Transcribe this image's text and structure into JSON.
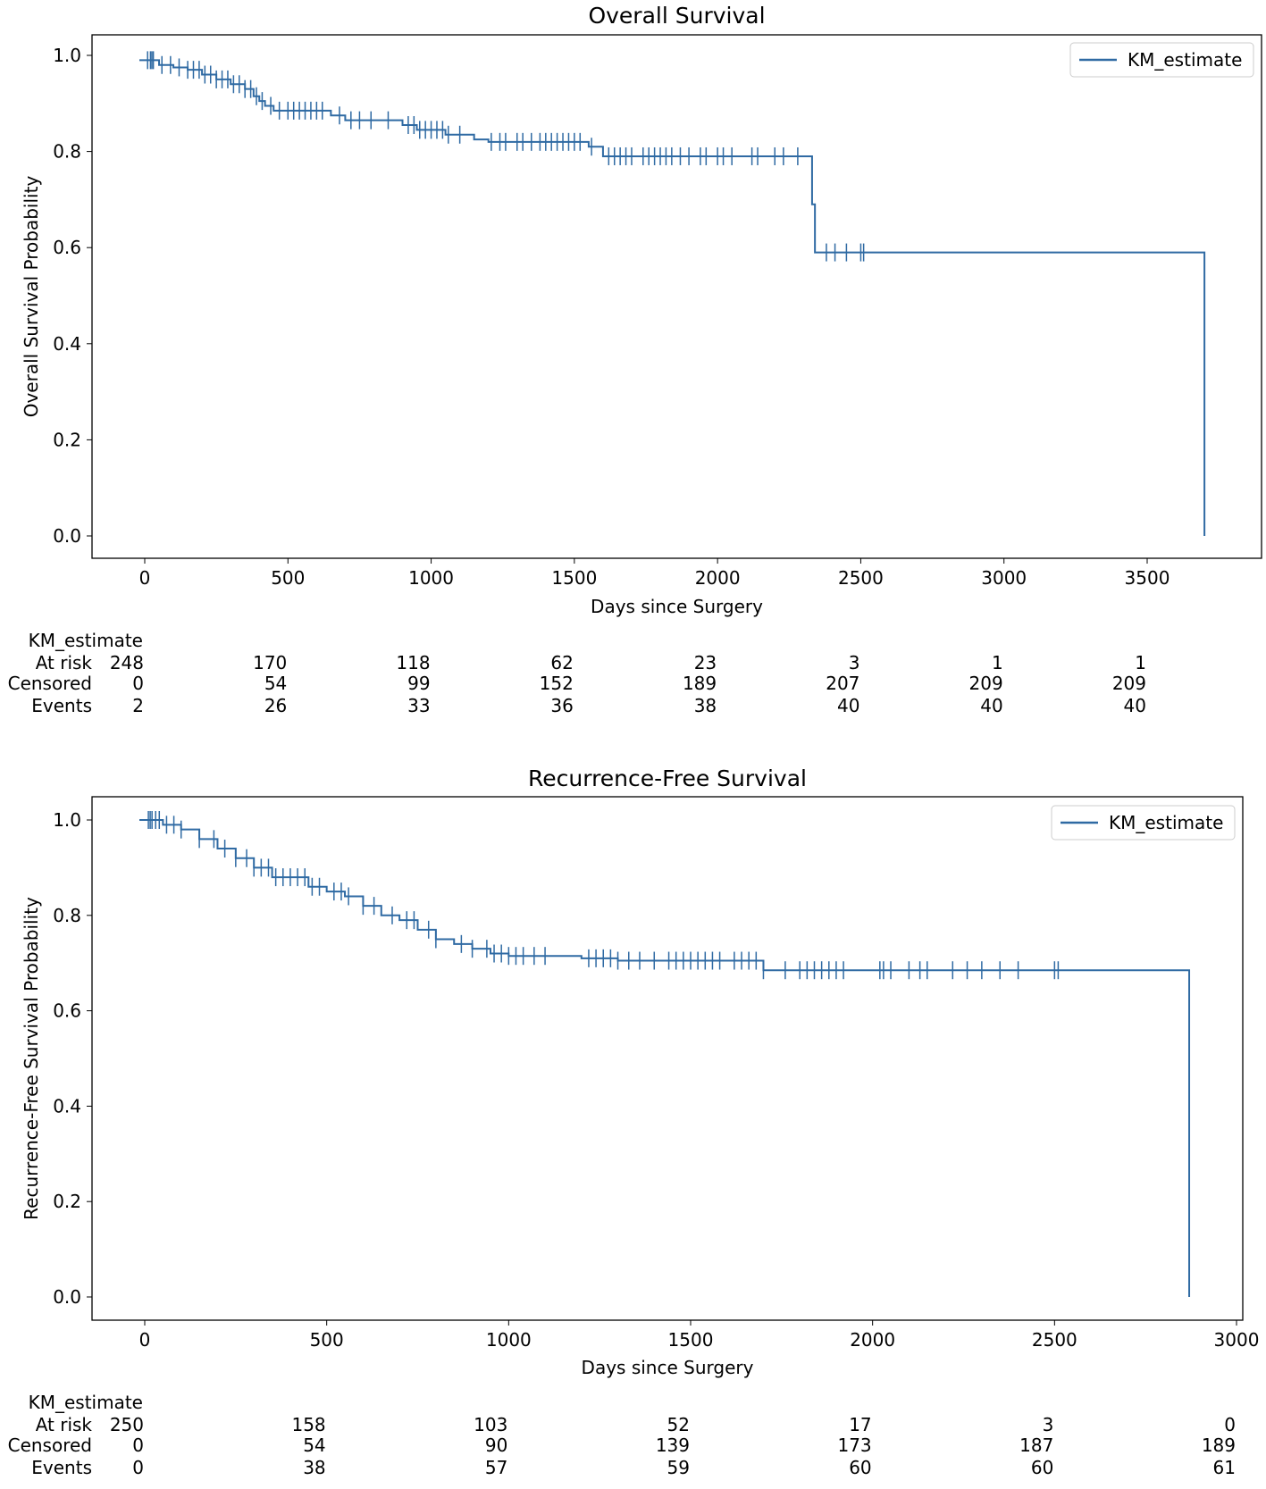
{
  "color": "#2f6aa3",
  "chart_data": [
    {
      "type": "line",
      "title": "Overall Survival",
      "xlabel": "Days since Surgery",
      "ylabel": "Overall Survival Probability",
      "xlim": [
        -180,
        3900
      ],
      "ylim": [
        -0.05,
        1.04
      ],
      "xticks": [
        0,
        500,
        1000,
        1500,
        2000,
        2500,
        3000,
        3500
      ],
      "yticks": [
        0.0,
        0.2,
        0.4,
        0.6,
        0.8,
        1.0
      ],
      "ytick_labels": [
        "0.0",
        "0.2",
        "0.4",
        "0.6",
        "0.8",
        "1.0"
      ],
      "legend": {
        "label": "KM_estimate",
        "position": "top-right"
      },
      "grid": false,
      "steps": [
        [
          0,
          0.99
        ],
        [
          50,
          0.98
        ],
        [
          100,
          0.975
        ],
        [
          150,
          0.97
        ],
        [
          200,
          0.96
        ],
        [
          250,
          0.95
        ],
        [
          300,
          0.94
        ],
        [
          350,
          0.93
        ],
        [
          380,
          0.915
        ],
        [
          400,
          0.905
        ],
        [
          420,
          0.895
        ],
        [
          450,
          0.885
        ],
        [
          650,
          0.875
        ],
        [
          700,
          0.865
        ],
        [
          900,
          0.855
        ],
        [
          950,
          0.845
        ],
        [
          1050,
          0.835
        ],
        [
          1150,
          0.825
        ],
        [
          1200,
          0.82
        ],
        [
          1550,
          0.81
        ],
        [
          1600,
          0.79
        ],
        [
          2330,
          0.69
        ],
        [
          2340,
          0.59
        ],
        [
          3700,
          0.0
        ]
      ],
      "censored": [
        10,
        20,
        25,
        30,
        60,
        90,
        120,
        150,
        170,
        190,
        210,
        230,
        250,
        270,
        290,
        310,
        330,
        350,
        370,
        390,
        410,
        440,
        470,
        500,
        520,
        540,
        560,
        580,
        600,
        620,
        680,
        720,
        750,
        790,
        850,
        920,
        940,
        960,
        980,
        1000,
        1020,
        1040,
        1060,
        1100,
        1210,
        1240,
        1260,
        1300,
        1320,
        1350,
        1380,
        1400,
        1420,
        1440,
        1460,
        1480,
        1500,
        1520,
        1560,
        1620,
        1640,
        1660,
        1680,
        1700,
        1740,
        1760,
        1780,
        1800,
        1820,
        1840,
        1870,
        1900,
        1940,
        1960,
        2000,
        2020,
        2050,
        2120,
        2140,
        2200,
        2230,
        2280,
        2380,
        2410,
        2450,
        2500,
        2510
      ],
      "at_risk_table": {
        "title": "KM_estimate",
        "row_labels": [
          "At risk",
          "Censored",
          "Events"
        ],
        "times": [
          0,
          500,
          1000,
          1500,
          2000,
          2500,
          3000,
          3500
        ],
        "at_risk": [
          "248",
          "170",
          "118",
          "62",
          "23",
          "3",
          "1",
          "1"
        ],
        "censored": [
          "0",
          "54",
          "99",
          "152",
          "189",
          "207",
          "209",
          "209"
        ],
        "events": [
          "2",
          "26",
          "33",
          "36",
          "38",
          "40",
          "40",
          "40"
        ]
      }
    },
    {
      "type": "line",
      "title": "Recurrence-Free Survival",
      "xlabel": "Days since Surgery",
      "ylabel": "Recurrence-Free Survival Probability",
      "xlim": [
        -143,
        3020
      ],
      "ylim": [
        -0.05,
        1.05
      ],
      "xticks": [
        0,
        500,
        1000,
        1500,
        2000,
        2500,
        3000
      ],
      "yticks": [
        0.0,
        0.2,
        0.4,
        0.6,
        0.8,
        1.0
      ],
      "ytick_labels": [
        "0.0",
        "0.2",
        "0.4",
        "0.6",
        "0.8",
        "1.0"
      ],
      "legend": {
        "label": "KM_estimate",
        "position": "top-right"
      },
      "grid": false,
      "steps": [
        [
          0,
          1.0
        ],
        [
          50,
          0.99
        ],
        [
          100,
          0.98
        ],
        [
          150,
          0.96
        ],
        [
          200,
          0.94
        ],
        [
          250,
          0.92
        ],
        [
          300,
          0.9
        ],
        [
          350,
          0.88
        ],
        [
          450,
          0.86
        ],
        [
          500,
          0.85
        ],
        [
          550,
          0.84
        ],
        [
          600,
          0.82
        ],
        [
          650,
          0.8
        ],
        [
          700,
          0.79
        ],
        [
          750,
          0.77
        ],
        [
          800,
          0.75
        ],
        [
          850,
          0.74
        ],
        [
          900,
          0.73
        ],
        [
          950,
          0.72
        ],
        [
          1000,
          0.715
        ],
        [
          1200,
          0.71
        ],
        [
          1300,
          0.705
        ],
        [
          1700,
          0.685
        ],
        [
          2870,
          0.0
        ]
      ],
      "censored": [
        10,
        15,
        20,
        30,
        40,
        60,
        80,
        100,
        150,
        190,
        220,
        250,
        280,
        300,
        320,
        340,
        360,
        380,
        400,
        420,
        440,
        460,
        480,
        520,
        540,
        560,
        600,
        630,
        680,
        720,
        740,
        780,
        800,
        870,
        900,
        940,
        960,
        980,
        1000,
        1020,
        1040,
        1070,
        1100,
        1220,
        1240,
        1260,
        1280,
        1300,
        1330,
        1360,
        1400,
        1440,
        1460,
        1480,
        1500,
        1520,
        1540,
        1560,
        1580,
        1620,
        1640,
        1660,
        1680,
        1700,
        1760,
        1800,
        1820,
        1840,
        1860,
        1880,
        1900,
        1920,
        2020,
        2030,
        2050,
        2100,
        2130,
        2150,
        2220,
        2260,
        2300,
        2350,
        2400,
        2500,
        2510
      ],
      "at_risk_table": {
        "title": "KM_estimate",
        "row_labels": [
          "At risk",
          "Censored",
          "Events"
        ],
        "times": [
          0,
          500,
          1000,
          1500,
          2000,
          2500,
          3000
        ],
        "at_risk": [
          "250",
          "158",
          "103",
          "52",
          "17",
          "3",
          "0"
        ],
        "censored": [
          "0",
          "54",
          "90",
          "139",
          "173",
          "187",
          "189"
        ],
        "events": [
          "0",
          "38",
          "57",
          "59",
          "60",
          "60",
          "61"
        ]
      }
    }
  ]
}
